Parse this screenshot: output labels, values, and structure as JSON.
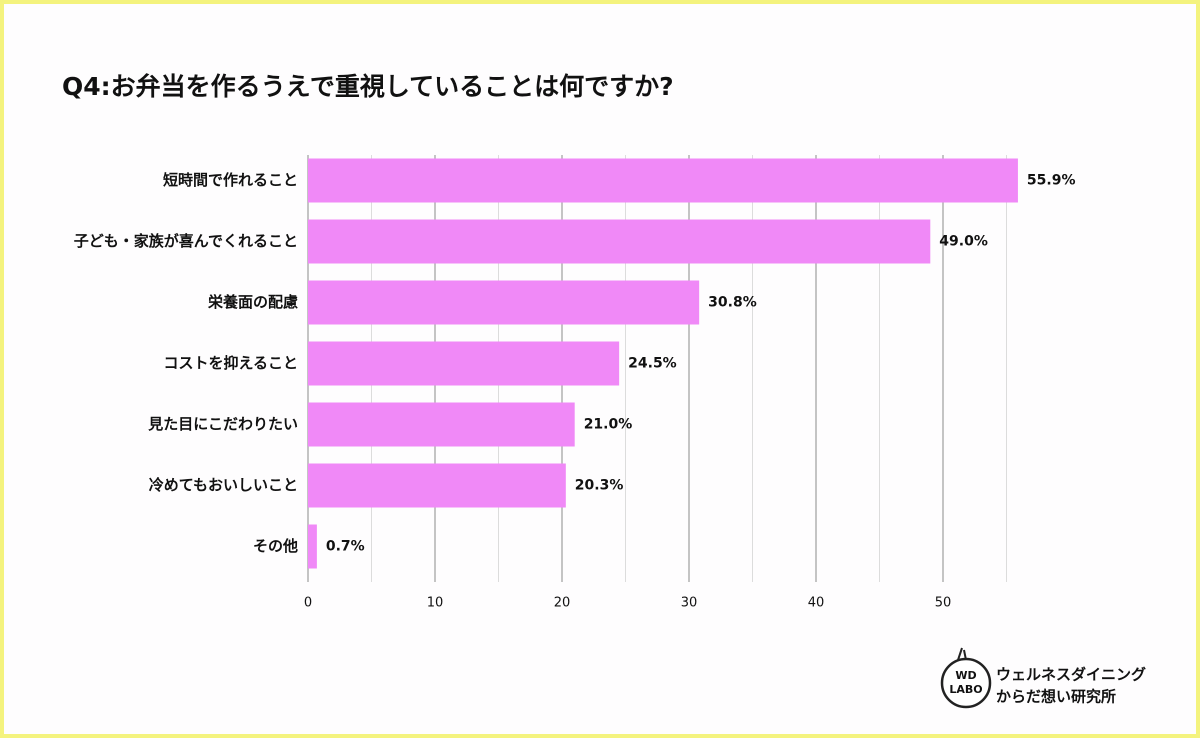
{
  "chart_data": {
    "type": "barh",
    "title": "Q4:お弁当を作るうえで重視していることは何ですか?",
    "categories": [
      "短時間で作れること",
      "子ども・家族が喜んでくれること",
      "栄養面の配慮",
      "コストを抑えること",
      "見た目にこだわりたい",
      "冷めてもおいしいこと",
      "その他"
    ],
    "values": [
      55.9,
      49.0,
      30.8,
      24.5,
      21.0,
      20.3,
      0.7
    ],
    "value_labels": [
      "55.9%",
      "49.0%",
      "30.8%",
      "24.5%",
      "21.0%",
      "20.3%",
      "0.7%"
    ],
    "color": "#f089f7",
    "xlim": [
      0,
      55
    ],
    "xticks": [
      0,
      10,
      20,
      30,
      40,
      50
    ],
    "xminorticks": [
      5,
      15,
      25,
      35,
      45,
      55
    ],
    "grid": true
  },
  "brand": {
    "logo": [
      "WD",
      "LABO"
    ],
    "name": [
      "ウェルネスダイニング",
      "からだ想い研究所"
    ]
  }
}
